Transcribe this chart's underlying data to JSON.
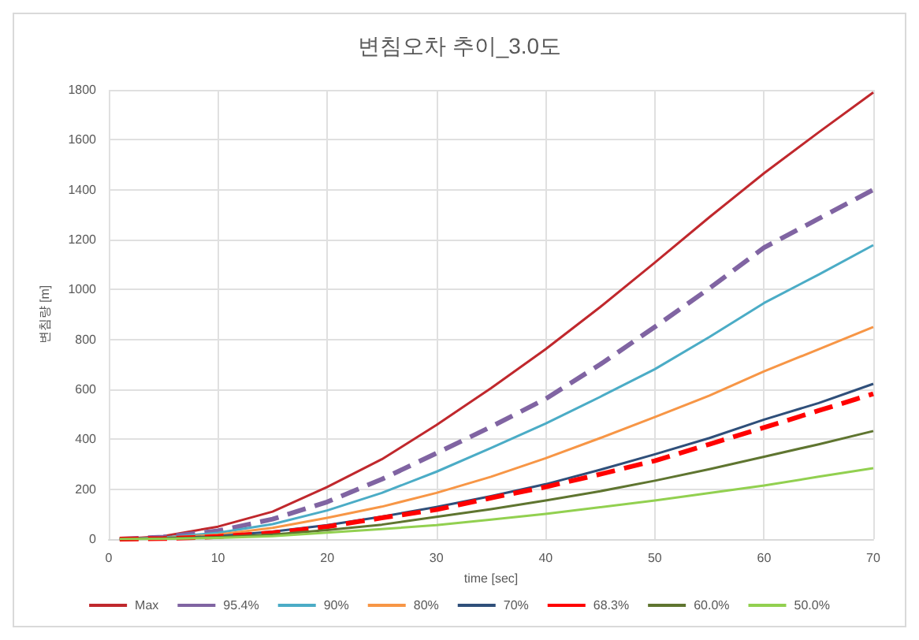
{
  "chart_data": {
    "type": "line",
    "title": "변침오차 추이_3.0도",
    "xlabel": "time [sec]",
    "ylabel": "변침량 [m]",
    "x": [
      1,
      5,
      10,
      15,
      20,
      25,
      30,
      35,
      40,
      45,
      50,
      55,
      60,
      65,
      70
    ],
    "xlim": [
      0,
      70
    ],
    "xticks": [
      0,
      10,
      20,
      30,
      40,
      50,
      60,
      70
    ],
    "ylim": [
      0,
      1800
    ],
    "yticks": [
      0,
      200,
      400,
      600,
      800,
      1000,
      1200,
      1400,
      1600,
      1800
    ],
    "grid": true,
    "legend": "bottom",
    "marker": "none",
    "series": [
      {
        "name": "Max",
        "color": "#c0282d",
        "line_style": "solid",
        "values": [
          0,
          12,
          50,
          110,
          209,
          320,
          457,
          605,
          761,
          930,
          1108,
          1290,
          1466,
          1630,
          1790
        ]
      },
      {
        "name": "95.4%",
        "color": "#8064a2",
        "line_style": "dashed",
        "values": [
          0,
          8,
          33,
          80,
          149,
          240,
          344,
          450,
          562,
          700,
          850,
          1005,
          1168,
          1284,
          1400
        ]
      },
      {
        "name": "90%",
        "color": "#4bacc6",
        "line_style": "solid",
        "values": [
          0,
          6,
          25,
          60,
          115,
          185,
          270,
          365,
          463,
          570,
          681,
          810,
          946,
          1060,
          1178
        ]
      },
      {
        "name": "80%",
        "color": "#f79646",
        "line_style": "solid",
        "values": [
          0,
          4,
          18,
          45,
          85,
          130,
          185,
          250,
          324,
          405,
          489,
          575,
          672,
          761,
          850
        ]
      },
      {
        "name": "70%",
        "color": "#2f4f7a",
        "line_style": "solid",
        "values": [
          0,
          3,
          12,
          30,
          56,
          90,
          129,
          172,
          220,
          278,
          340,
          405,
          479,
          545,
          622
        ]
      },
      {
        "name": "68.3%",
        "color": "#ff0000",
        "line_style": "dashed",
        "values": [
          0,
          2,
          10,
          25,
          50,
          85,
          118,
          165,
          209,
          260,
          314,
          380,
          447,
          515,
          582
        ]
      },
      {
        "name": "60.0%",
        "color": "#5f7530",
        "line_style": "solid",
        "values": [
          0,
          2,
          8,
          18,
          36,
          58,
          89,
          120,
          155,
          192,
          234,
          280,
          330,
          380,
          433
        ]
      },
      {
        "name": "50.0%",
        "color": "#92d050",
        "line_style": "solid",
        "values": [
          0,
          1,
          5,
          12,
          26,
          40,
          56,
          78,
          101,
          128,
          155,
          185,
          215,
          250,
          284
        ]
      }
    ]
  }
}
